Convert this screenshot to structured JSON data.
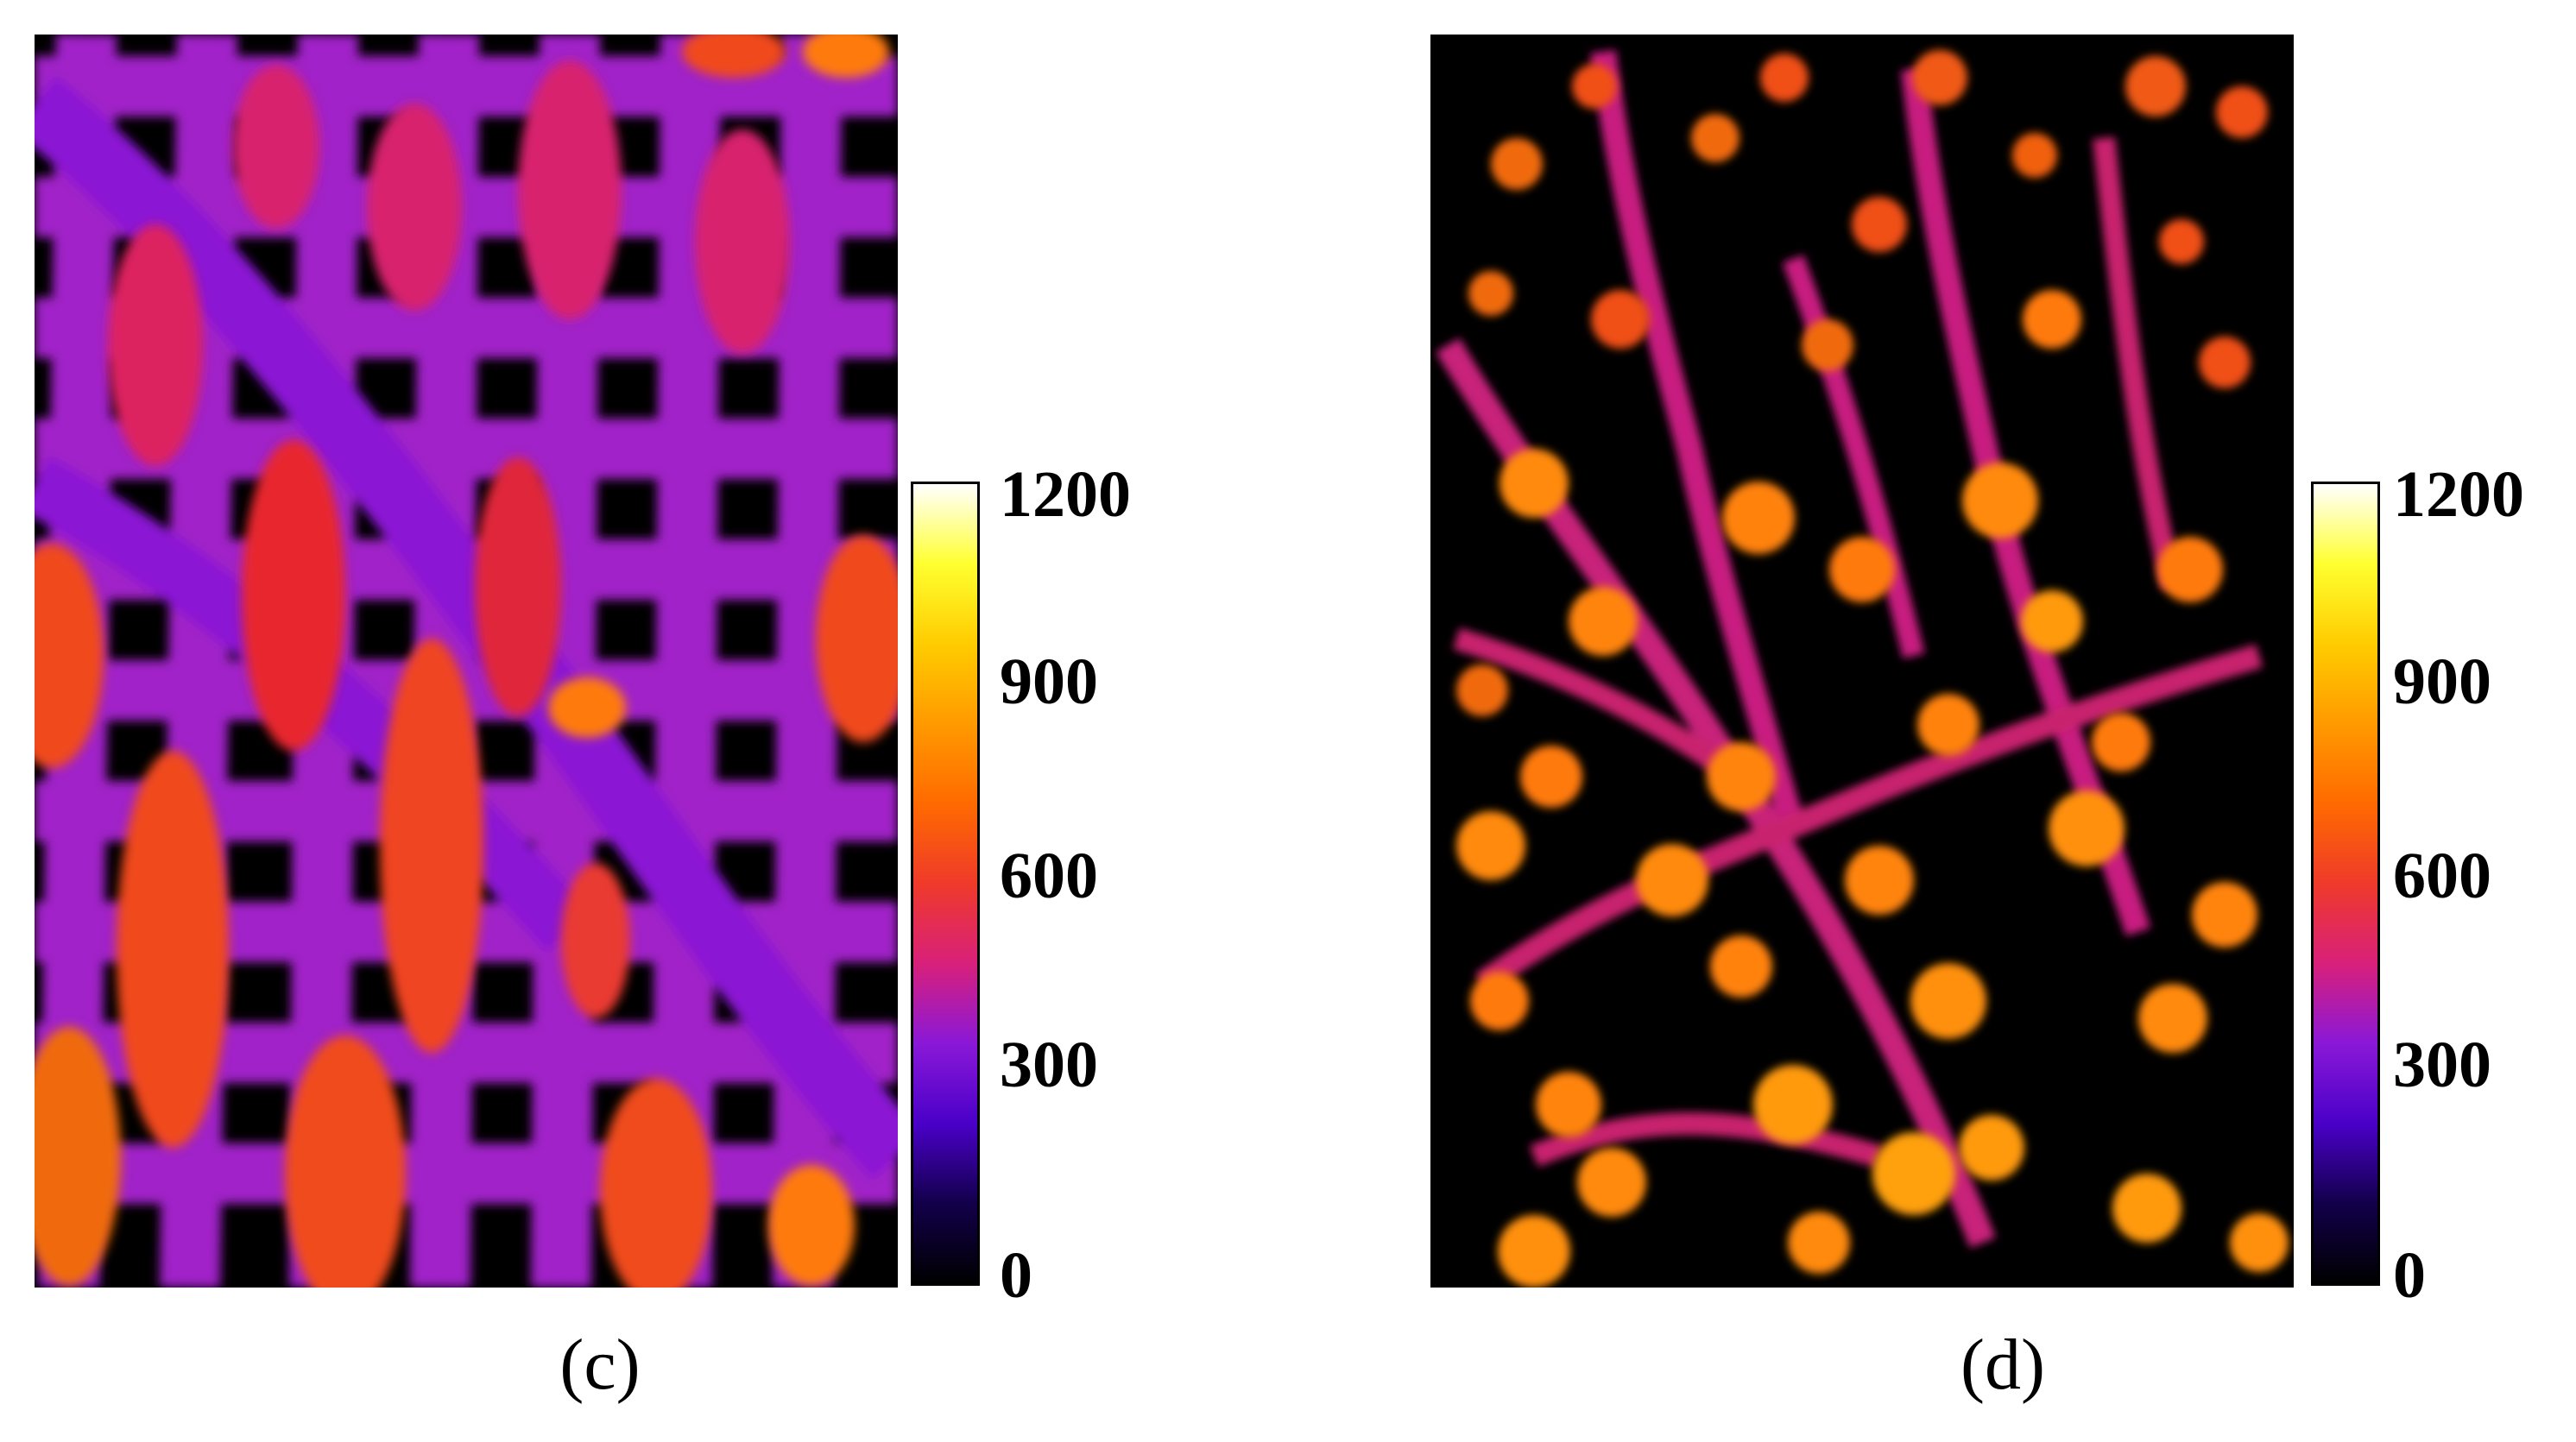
{
  "colors": {
    "background": "#ffffff",
    "colormap": [
      "#000000",
      "#12004a",
      "#4a00c8",
      "#8a18d8",
      "#d8207a",
      "#ef3a2a",
      "#ff6a00",
      "#ff9a00",
      "#ffcc00",
      "#ffff30",
      "#ffffff"
    ]
  },
  "panels": [
    {
      "caption": "(c)",
      "colorbar": {
        "ticks": [
          "1200",
          "900",
          "600",
          "300",
          "0"
        ]
      }
    },
    {
      "caption": "(d)",
      "colorbar": {
        "ticks": [
          "1200",
          "900",
          "600",
          "300",
          "0"
        ]
      }
    }
  ]
}
